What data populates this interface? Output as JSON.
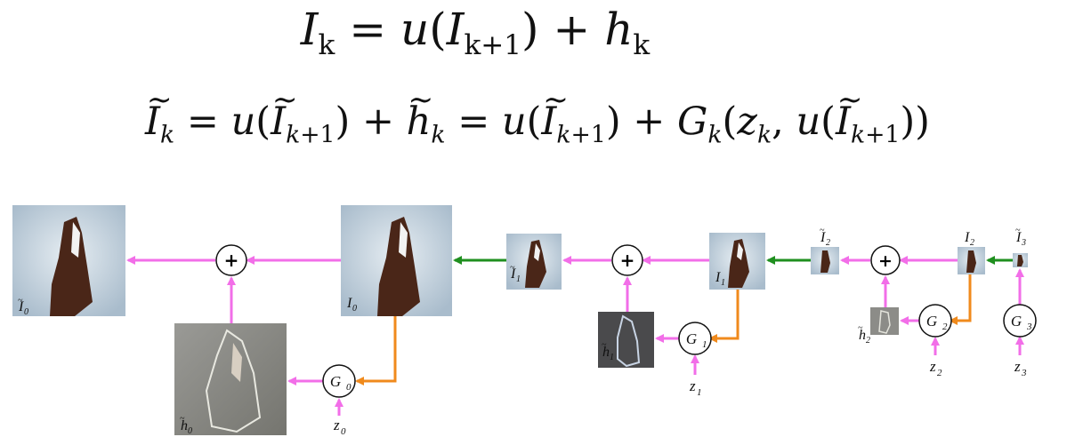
{
  "equations": {
    "eq1": {
      "lhs": "I",
      "lhs_sub": "k",
      "rhs_a": "= u(",
      "rhs_a_var": "I",
      "rhs_a_sub": "k+1",
      "rhs_a_close": ") +",
      "rhs_b": "h",
      "rhs_b_sub": "k"
    },
    "eq2": {
      "text": "Ĩ_k = u(Ĩ_{k+1}) + h̃_k = u(Ĩ_{k+1}) + G_k(z_k, u(Ĩ_{k+1}))"
    }
  },
  "nodes": {
    "plus_symbol": "+",
    "generators": [
      "G0",
      "G1",
      "G2",
      "G3"
    ],
    "noise_inputs": [
      "z0",
      "z1",
      "z2",
      "z3"
    ]
  },
  "image_labels": {
    "I0_tilde": "Ĩ0",
    "I0": "I0",
    "h0_tilde": "h̃0",
    "I1_tilde": "Ĩ1",
    "I1": "I1",
    "h1_tilde": "h̃1",
    "I2_tilde": "Ĩ2",
    "I2": "I2",
    "h2_tilde": "h̃2",
    "I3_tilde": "Ĩ3"
  },
  "colors": {
    "magenta_arrow": "#f26ee8",
    "green_arrow": "#1f8f1f",
    "orange_arrow": "#f08a1c",
    "image_bg": "#cfdbe6",
    "object_dark": "#4a2618",
    "residual_bg": "#8a8a86"
  }
}
